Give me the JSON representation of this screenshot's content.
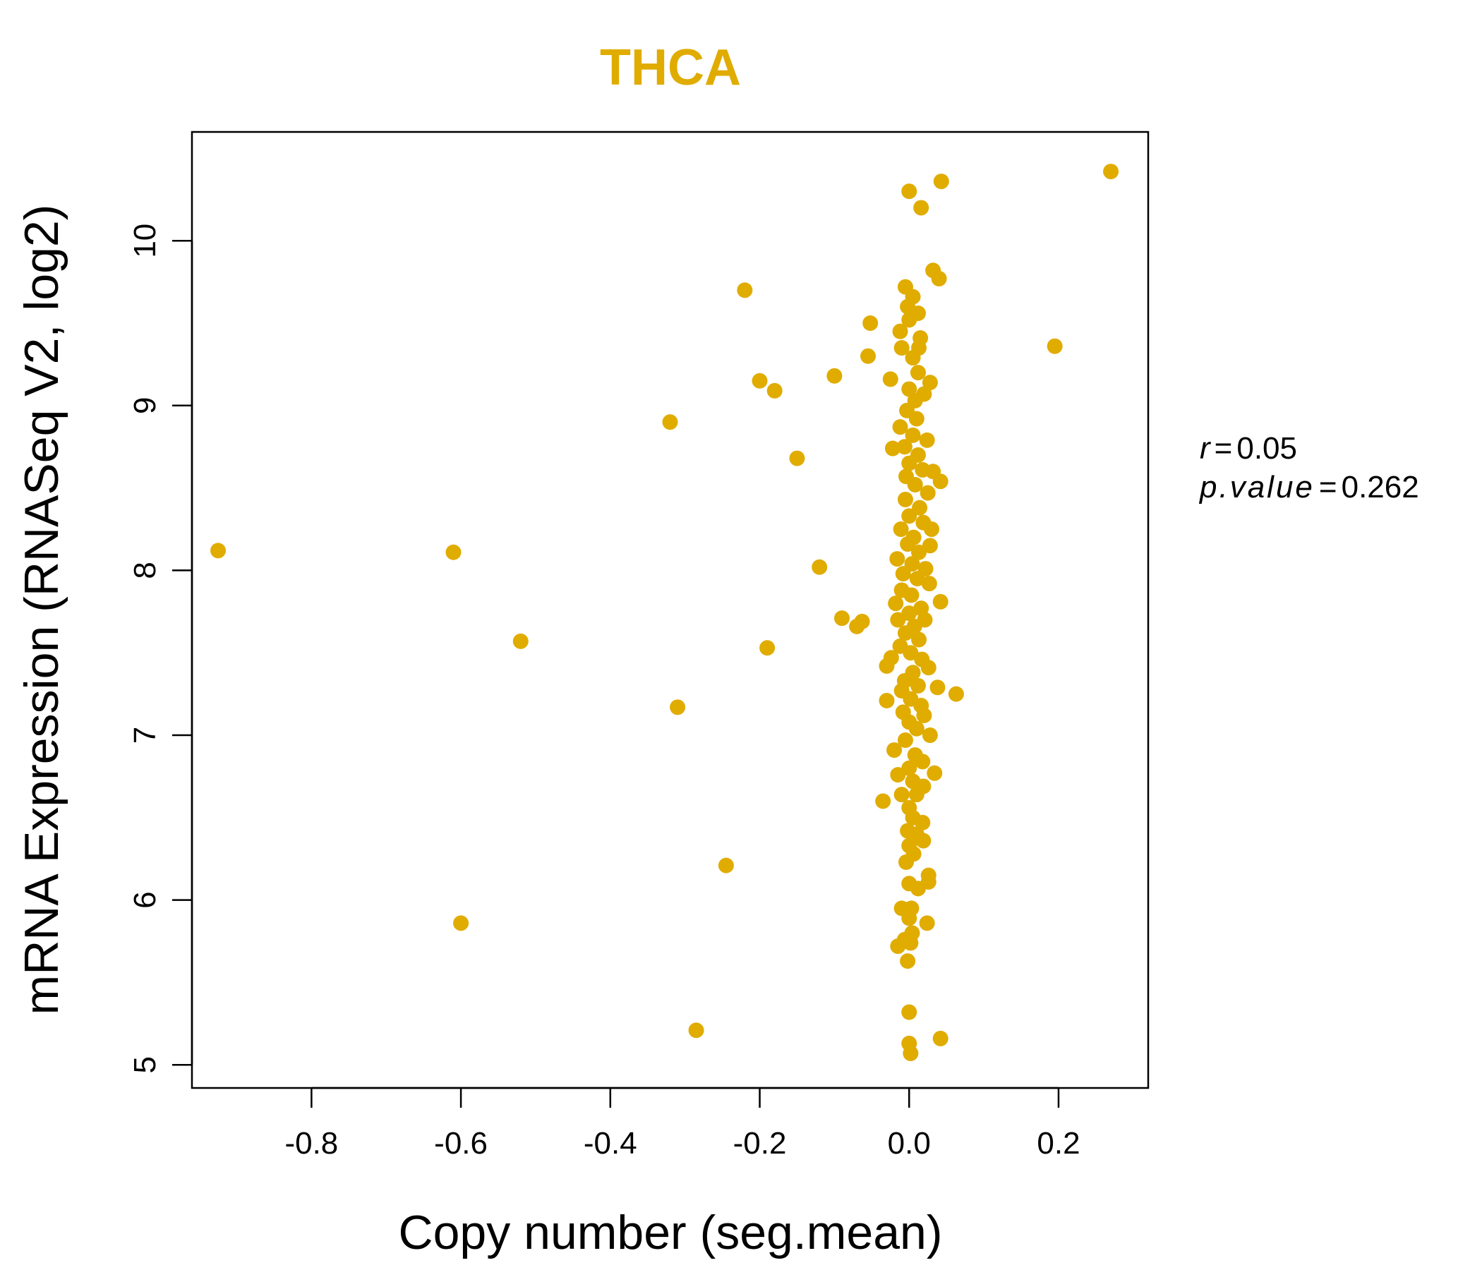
{
  "chart_data": {
    "type": "scatter",
    "title": "THCA",
    "xlabel": "Copy number (seg.mean)",
    "ylabel": "mRNA Expression (RNASeq V2, log2)",
    "xlim": [
      -0.96,
      0.32
    ],
    "ylim": [
      4.86,
      10.66
    ],
    "x_ticks": [
      -0.8,
      -0.6,
      -0.4,
      -0.2,
      0.0,
      0.2
    ],
    "x_tick_labels": [
      "-0.8",
      "-0.6",
      "-0.4",
      "-0.2",
      "0.0",
      "0.2"
    ],
    "y_ticks": [
      5,
      6,
      7,
      8,
      9,
      10
    ],
    "y_tick_labels": [
      "5",
      "6",
      "7",
      "8",
      "9",
      "10"
    ],
    "point_color": "#E0AC00",
    "stats": {
      "r_key": "r",
      "r_value": "0.05",
      "p_key": "p.value",
      "p_value": "0.262"
    },
    "outlier_points": [
      {
        "x": -0.925,
        "y": 8.12
      },
      {
        "x": -0.61,
        "y": 8.11
      },
      {
        "x": -0.6,
        "y": 5.86
      },
      {
        "x": -0.52,
        "y": 7.57
      },
      {
        "x": -0.32,
        "y": 8.9
      },
      {
        "x": -0.31,
        "y": 7.17
      },
      {
        "x": -0.285,
        "y": 5.21
      },
      {
        "x": -0.245,
        "y": 6.21
      },
      {
        "x": -0.22,
        "y": 9.7
      },
      {
        "x": -0.2,
        "y": 9.15
      },
      {
        "x": -0.19,
        "y": 7.53
      },
      {
        "x": -0.18,
        "y": 9.09
      },
      {
        "x": -0.15,
        "y": 8.68
      },
      {
        "x": -0.12,
        "y": 8.02
      },
      {
        "x": -0.1,
        "y": 9.18
      },
      {
        "x": -0.09,
        "y": 7.71
      },
      {
        "x": -0.07,
        "y": 7.66
      },
      {
        "x": -0.063,
        "y": 7.69
      },
      {
        "x": -0.055,
        "y": 9.3
      },
      {
        "x": -0.052,
        "y": 9.5
      },
      {
        "x": 0.195,
        "y": 9.36
      },
      {
        "x": 0.27,
        "y": 10.42
      },
      {
        "x": 0.043,
        "y": 10.36
      },
      {
        "x": 0.0,
        "y": 10.3
      },
      {
        "x": 0.016,
        "y": 10.2
      },
      {
        "x": 0.063,
        "y": 7.25
      }
    ],
    "cluster_points": [
      {
        "x": 0.032,
        "y": 9.82
      },
      {
        "x": 0.04,
        "y": 9.77
      },
      {
        "x": -0.005,
        "y": 9.72
      },
      {
        "x": 0.005,
        "y": 9.66
      },
      {
        "x": -0.002,
        "y": 9.6
      },
      {
        "x": 0.012,
        "y": 9.56
      },
      {
        "x": 0.0,
        "y": 9.52
      },
      {
        "x": -0.012,
        "y": 9.45
      },
      {
        "x": 0.015,
        "y": 9.41
      },
      {
        "x": -0.01,
        "y": 9.35
      },
      {
        "x": 0.013,
        "y": 9.35
      },
      {
        "x": 0.005,
        "y": 9.29
      },
      {
        "x": 0.012,
        "y": 9.2
      },
      {
        "x": -0.025,
        "y": 9.16
      },
      {
        "x": 0.028,
        "y": 9.14
      },
      {
        "x": 0.0,
        "y": 9.1
      },
      {
        "x": 0.02,
        "y": 9.07
      },
      {
        "x": 0.008,
        "y": 9.03
      },
      {
        "x": -0.003,
        "y": 8.97
      },
      {
        "x": 0.01,
        "y": 8.92
      },
      {
        "x": -0.012,
        "y": 8.87
      },
      {
        "x": 0.005,
        "y": 8.82
      },
      {
        "x": 0.024,
        "y": 8.79
      },
      {
        "x": -0.006,
        "y": 8.75
      },
      {
        "x": -0.022,
        "y": 8.74
      },
      {
        "x": 0.012,
        "y": 8.7
      },
      {
        "x": 0.0,
        "y": 8.65
      },
      {
        "x": 0.018,
        "y": 8.61
      },
      {
        "x": 0.032,
        "y": 8.6
      },
      {
        "x": -0.004,
        "y": 8.57
      },
      {
        "x": 0.042,
        "y": 8.54
      },
      {
        "x": 0.008,
        "y": 8.52
      },
      {
        "x": 0.025,
        "y": 8.47
      },
      {
        "x": -0.005,
        "y": 8.43
      },
      {
        "x": 0.014,
        "y": 8.38
      },
      {
        "x": 0.0,
        "y": 8.33
      },
      {
        "x": 0.019,
        "y": 8.29
      },
      {
        "x": -0.011,
        "y": 8.25
      },
      {
        "x": 0.03,
        "y": 8.25
      },
      {
        "x": 0.006,
        "y": 8.2
      },
      {
        "x": -0.002,
        "y": 8.16
      },
      {
        "x": 0.028,
        "y": 8.15
      },
      {
        "x": 0.013,
        "y": 8.11
      },
      {
        "x": -0.016,
        "y": 8.07
      },
      {
        "x": 0.004,
        "y": 8.04
      },
      {
        "x": 0.022,
        "y": 8.01
      },
      {
        "x": -0.008,
        "y": 7.98
      },
      {
        "x": 0.011,
        "y": 7.95
      },
      {
        "x": 0.027,
        "y": 7.92
      },
      {
        "x": -0.01,
        "y": 7.88
      },
      {
        "x": 0.003,
        "y": 7.85
      },
      {
        "x": 0.042,
        "y": 7.81
      },
      {
        "x": -0.018,
        "y": 7.8
      },
      {
        "x": 0.016,
        "y": 7.77
      },
      {
        "x": 0.0,
        "y": 7.74
      },
      {
        "x": -0.015,
        "y": 7.7
      },
      {
        "x": 0.021,
        "y": 7.7
      },
      {
        "x": 0.007,
        "y": 7.66
      },
      {
        "x": -0.005,
        "y": 7.62
      },
      {
        "x": 0.013,
        "y": 7.58
      },
      {
        "x": -0.012,
        "y": 7.54
      },
      {
        "x": 0.002,
        "y": 7.5
      },
      {
        "x": -0.024,
        "y": 7.47
      },
      {
        "x": 0.017,
        "y": 7.46
      },
      {
        "x": -0.03,
        "y": 7.42
      },
      {
        "x": 0.026,
        "y": 7.41
      },
      {
        "x": 0.005,
        "y": 7.38
      },
      {
        "x": -0.006,
        "y": 7.33
      },
      {
        "x": 0.012,
        "y": 7.3
      },
      {
        "x": 0.038,
        "y": 7.29
      },
      {
        "x": -0.01,
        "y": 7.27
      },
      {
        "x": 0.002,
        "y": 7.22
      },
      {
        "x": -0.03,
        "y": 7.21
      },
      {
        "x": 0.016,
        "y": 7.18
      },
      {
        "x": -0.008,
        "y": 7.14
      },
      {
        "x": 0.02,
        "y": 7.12
      },
      {
        "x": 0.0,
        "y": 7.08
      },
      {
        "x": 0.01,
        "y": 7.04
      },
      {
        "x": 0.028,
        "y": 7.0
      },
      {
        "x": -0.005,
        "y": 6.97
      },
      {
        "x": -0.02,
        "y": 6.91
      },
      {
        "x": 0.008,
        "y": 6.88
      },
      {
        "x": 0.018,
        "y": 6.84
      },
      {
        "x": 0.0,
        "y": 6.8
      },
      {
        "x": 0.034,
        "y": 6.77
      },
      {
        "x": -0.015,
        "y": 6.76
      },
      {
        "x": 0.005,
        "y": 6.72
      },
      {
        "x": 0.019,
        "y": 6.69
      },
      {
        "x": -0.01,
        "y": 6.64
      },
      {
        "x": 0.01,
        "y": 6.64
      },
      {
        "x": -0.035,
        "y": 6.6
      },
      {
        "x": 0.0,
        "y": 6.56
      },
      {
        "x": 0.005,
        "y": 6.5
      },
      {
        "x": 0.018,
        "y": 6.47
      },
      {
        "x": -0.002,
        "y": 6.42
      },
      {
        "x": 0.01,
        "y": 6.4
      },
      {
        "x": 0.019,
        "y": 6.36
      },
      {
        "x": 0.0,
        "y": 6.33
      },
      {
        "x": 0.006,
        "y": 6.28
      },
      {
        "x": -0.004,
        "y": 6.23
      },
      {
        "x": 0.026,
        "y": 6.15
      },
      {
        "x": 0.026,
        "y": 6.11
      },
      {
        "x": 0.0,
        "y": 6.1
      },
      {
        "x": 0.012,
        "y": 6.07
      },
      {
        "x": -0.01,
        "y": 5.95
      },
      {
        "x": 0.003,
        "y": 5.95
      },
      {
        "x": 0.0,
        "y": 5.89
      },
      {
        "x": 0.024,
        "y": 5.86
      },
      {
        "x": 0.004,
        "y": 5.8
      },
      {
        "x": -0.006,
        "y": 5.76
      },
      {
        "x": 0.002,
        "y": 5.74
      },
      {
        "x": -0.015,
        "y": 5.72
      },
      {
        "x": -0.002,
        "y": 5.63
      },
      {
        "x": 0.0,
        "y": 5.32
      },
      {
        "x": 0.042,
        "y": 5.16
      },
      {
        "x": 0.0,
        "y": 5.13
      },
      {
        "x": 0.002,
        "y": 5.07
      }
    ]
  }
}
